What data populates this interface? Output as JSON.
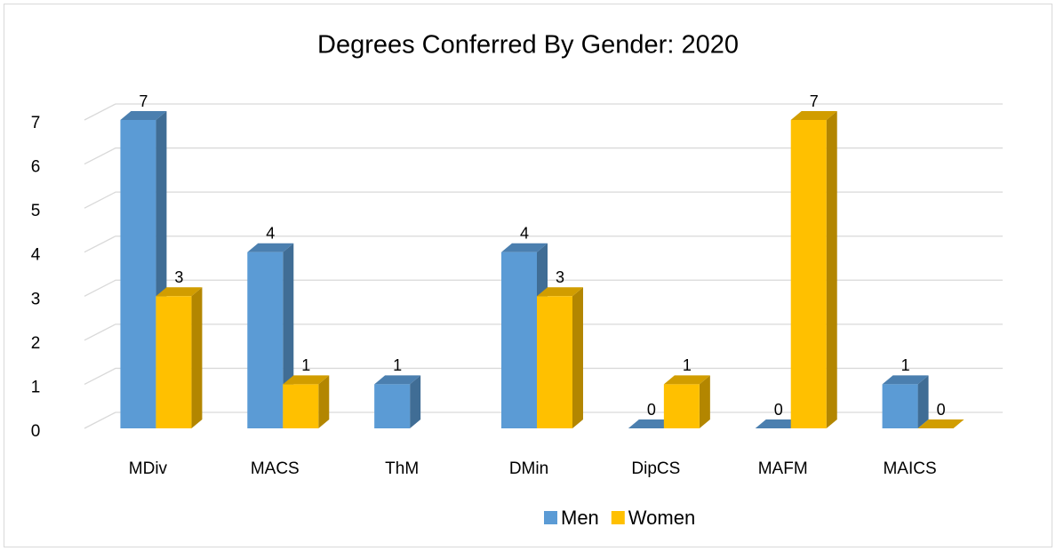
{
  "chart_data": {
    "type": "bar3d",
    "title": "Degrees Conferred By Gender:  2020",
    "categories": [
      "MDiv",
      "MACS",
      "ThM",
      "DMin",
      "DipCS",
      "MAFM",
      "MAICS"
    ],
    "series": [
      {
        "name": "Men",
        "color": "#5b9bd5",
        "values": [
          7,
          4,
          1,
          4,
          0,
          0,
          1
        ]
      },
      {
        "name": "Women",
        "color": "#ffc000",
        "values": [
          3,
          1,
          null,
          3,
          1,
          7,
          0
        ]
      }
    ],
    "ylim": [
      0,
      7
    ],
    "yticks": [
      0,
      1,
      2,
      3,
      4,
      5,
      6,
      7
    ],
    "grid": true,
    "legend": "bottom"
  }
}
